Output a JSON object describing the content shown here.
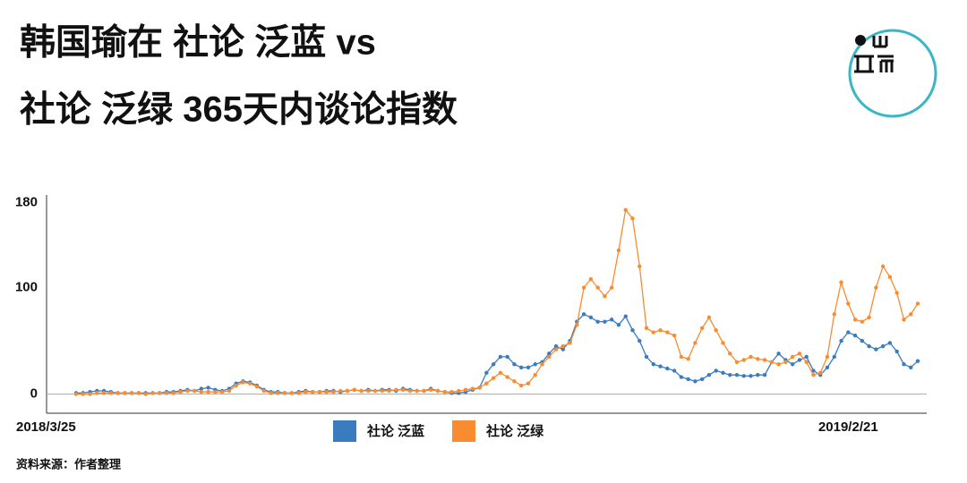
{
  "chart_data": {
    "type": "line",
    "title": "韩国瑜在 社论 泛蓝 vs",
    "subtitle": "社论 泛绿 365天内谈论指数",
    "source": "资料来源：作者整理",
    "categories": [
      "2018/3/25",
      null,
      null,
      null,
      null,
      null,
      null,
      null,
      null,
      null,
      null,
      null,
      null,
      null,
      null,
      null,
      null,
      null,
      null,
      null,
      null,
      null,
      null,
      null,
      null,
      null,
      null,
      null,
      null,
      null,
      null,
      null,
      null,
      null,
      null,
      null,
      null,
      null,
      null,
      null,
      null,
      null,
      null,
      null,
      null,
      null,
      null,
      null,
      null,
      null,
      null,
      null,
      null,
      null,
      null,
      null,
      null,
      null,
      null,
      null,
      null,
      null,
      null,
      null,
      null,
      null,
      null,
      null,
      null,
      null,
      null,
      null,
      null,
      null,
      null,
      null,
      null,
      null,
      null,
      null,
      null,
      null,
      null,
      null,
      null,
      null,
      null,
      null,
      null,
      null,
      null,
      null,
      null,
      null,
      null,
      null,
      null,
      null,
      null,
      null,
      null,
      null,
      null,
      null,
      null,
      null,
      null,
      null,
      null,
      null,
      null,
      "2019/2/21",
      null,
      null,
      null,
      null,
      null,
      null,
      null,
      null,
      null,
      null
    ],
    "series": [
      {
        "name": "社论 泛蓝",
        "color": "#3b7bbf",
        "values": [
          1,
          1,
          2,
          3,
          3,
          2,
          1,
          1,
          1,
          1,
          1,
          1,
          1,
          2,
          2,
          3,
          4,
          3,
          5,
          6,
          4,
          3,
          5,
          10,
          12,
          11,
          8,
          4,
          2,
          2,
          1,
          1,
          2,
          3,
          2,
          2,
          3,
          3,
          2,
          3,
          4,
          3,
          4,
          3,
          4,
          4,
          3,
          5,
          4,
          3,
          3,
          5,
          3,
          2,
          1,
          1,
          2,
          4,
          6,
          20,
          28,
          35,
          35,
          28,
          25,
          25,
          28,
          30,
          38,
          45,
          42,
          50,
          68,
          75,
          72,
          68,
          68,
          70,
          65,
          73,
          60,
          50,
          35,
          28,
          26,
          24,
          22,
          16,
          14,
          12,
          14,
          18,
          22,
          20,
          18,
          18,
          17,
          17,
          18,
          18,
          30,
          38,
          32,
          28,
          32,
          35,
          22,
          18,
          25,
          35,
          50,
          58,
          55,
          50,
          45,
          42,
          45,
          48,
          40,
          28,
          25,
          31
        ]
      },
      {
        "name": "社论 泛绿",
        "color": "#f98c31",
        "values": [
          0,
          0,
          0,
          1,
          1,
          1,
          1,
          1,
          1,
          1,
          0,
          1,
          1,
          1,
          1,
          2,
          3,
          3,
          2,
          2,
          2,
          2,
          3,
          8,
          11,
          10,
          7,
          3,
          1,
          1,
          1,
          1,
          1,
          2,
          2,
          2,
          2,
          2,
          3,
          3,
          4,
          3,
          3,
          3,
          3,
          3,
          4,
          4,
          3,
          3,
          3,
          4,
          3,
          2,
          2,
          3,
          4,
          5,
          6,
          10,
          15,
          20,
          16,
          12,
          8,
          10,
          18,
          28,
          35,
          42,
          45,
          48,
          65,
          100,
          108,
          100,
          92,
          100,
          135,
          173,
          165,
          120,
          62,
          58,
          60,
          58,
          55,
          35,
          33,
          48,
          62,
          72,
          60,
          48,
          38,
          30,
          32,
          35,
          33,
          32,
          30,
          28,
          30,
          35,
          38,
          30,
          18,
          20,
          35,
          75,
          105,
          85,
          70,
          68,
          72,
          100,
          120,
          110,
          95,
          70,
          75,
          85
        ]
      }
    ],
    "ylim": [
      -18,
      187
    ],
    "yticks": [
      0,
      100,
      180
    ],
    "grid": true
  }
}
